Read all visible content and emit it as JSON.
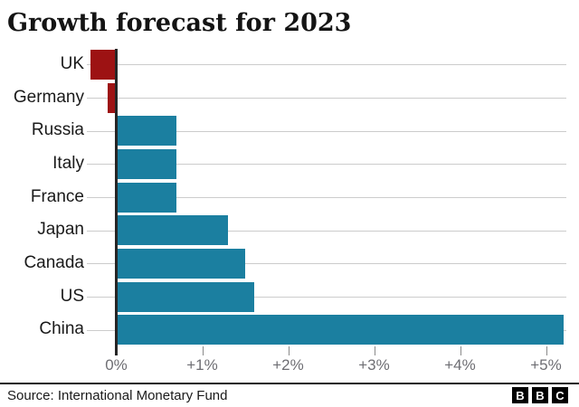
{
  "chart_data": {
    "type": "bar",
    "orientation": "horizontal",
    "title": "Growth forecast for 2023",
    "categories": [
      "UK",
      "Germany",
      "Russia",
      "Italy",
      "France",
      "Japan",
      "Canada",
      "US",
      "China"
    ],
    "values": [
      -0.3,
      -0.1,
      0.7,
      0.7,
      0.7,
      1.3,
      1.5,
      1.6,
      5.2
    ],
    "value_unit": "percent",
    "xlabel": "",
    "ylabel": "",
    "xlim": [
      -0.4,
      5.3
    ],
    "x_ticks": [
      {
        "value": 0,
        "label": "0%"
      },
      {
        "value": 1,
        "label": "+1%"
      },
      {
        "value": 2,
        "label": "+2%"
      },
      {
        "value": 3,
        "label": "+3%"
      },
      {
        "value": 4,
        "label": "+4%"
      },
      {
        "value": 5,
        "label": "+5%"
      }
    ],
    "grid": "horizontal",
    "legend": "none",
    "colors": {
      "positive": "#1B7FA0",
      "negative": "#9D1213",
      "axis": "#262626",
      "gridline": "#cccccc",
      "tick": "#8a8a8a",
      "tick_label": "#6e6e73",
      "text": "#1a1a1a"
    }
  },
  "footer": {
    "source": "Source: International Monetary Fund",
    "logo_letters": [
      "B",
      "B",
      "C"
    ]
  }
}
